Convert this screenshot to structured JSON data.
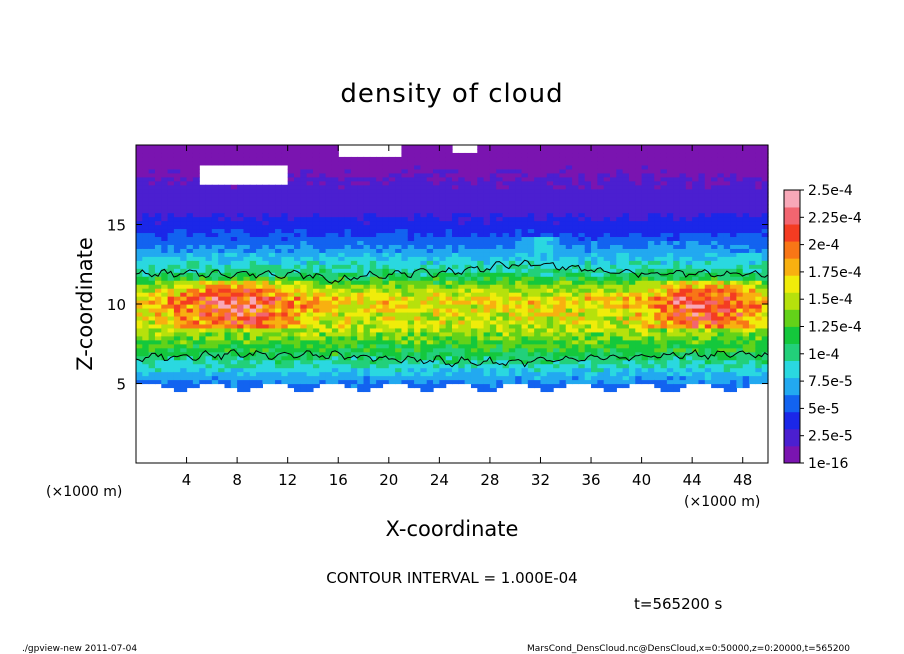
{
  "chart_data": {
    "type": "heatmap",
    "title": "density of cloud",
    "xlabel": "X-coordinate",
    "ylabel": "Z-coordinate",
    "x_unit_label": "(×1000 m)",
    "y_unit_label": "(×1000 m)",
    "xlim": [
      0,
      50
    ],
    "ylim": [
      0,
      20
    ],
    "x_ticks": [
      4,
      8,
      12,
      16,
      20,
      24,
      28,
      32,
      36,
      40,
      44,
      48
    ],
    "y_ticks": [
      5,
      10,
      15
    ],
    "colorbar": {
      "labels": [
        "1e-16",
        "2.5e-5",
        "5e-5",
        "7.5e-5",
        "1e-4",
        "1.25e-4",
        "1.5e-4",
        "1.75e-4",
        "2e-4",
        "2.25e-4",
        "2.5e-4"
      ],
      "colors": [
        "#7a14b0",
        "#4b1fd0",
        "#1b27e8",
        "#1263f0",
        "#22a9f0",
        "#2ad8e0",
        "#22d07a",
        "#14c83c",
        "#63d219",
        "#b6e10c",
        "#f0ec0a",
        "#f8b010",
        "#f87616",
        "#f43c22",
        "#f26570",
        "#f8a8b8"
      ]
    },
    "contour_levels": [
      0.0001,
      0.0002
    ],
    "profile": [
      {
        "z": 4.8,
        "v": 5e-05
      },
      {
        "z": 5.5,
        "v": 7e-05
      },
      {
        "z": 6.5,
        "v": 0.0001
      },
      {
        "z": 8.5,
        "v": 0.00015
      },
      {
        "z": 10.3,
        "v": 0.00017
      },
      {
        "z": 12.0,
        "v": 0.0001
      },
      {
        "z": 13.5,
        "v": 6e-05
      },
      {
        "z": 15.0,
        "v": 3e-05
      },
      {
        "z": 17.0,
        "v": 1e-05
      },
      {
        "z": 20.0,
        "v": 5e-06
      }
    ],
    "contour_interval": "CONTOUR INTERVAL = 1.000E-04",
    "time_label": "t=565200 s"
  },
  "footer": {
    "left": "./gpview-new  2011-07-04",
    "right": "MarsCond_DensCloud.nc@DensCloud,x=0:50000,z=0:20000,t=565200"
  }
}
